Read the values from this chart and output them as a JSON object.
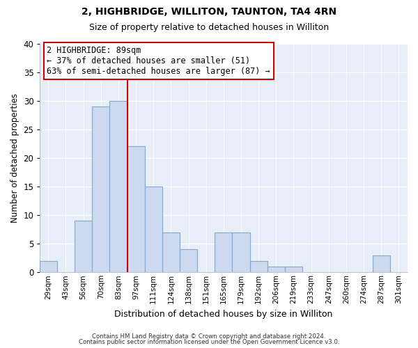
{
  "title": "2, HIGHBRIDGE, WILLITON, TAUNTON, TA4 4RN",
  "subtitle": "Size of property relative to detached houses in Williton",
  "xlabel": "Distribution of detached houses by size in Williton",
  "ylabel": "Number of detached properties",
  "bin_labels": [
    "29sqm",
    "43sqm",
    "56sqm",
    "70sqm",
    "83sqm",
    "97sqm",
    "111sqm",
    "124sqm",
    "138sqm",
    "151sqm",
    "165sqm",
    "179sqm",
    "192sqm",
    "206sqm",
    "219sqm",
    "233sqm",
    "247sqm",
    "260sqm",
    "274sqm",
    "287sqm",
    "301sqm"
  ],
  "bar_heights": [
    2,
    0,
    9,
    29,
    30,
    22,
    15,
    7,
    4,
    0,
    7,
    7,
    2,
    1,
    1,
    0,
    0,
    0,
    0,
    3,
    0
  ],
  "bar_color": "#ccd9ee",
  "bar_edge_color": "#7aaad0",
  "highlight_bar_index": 5,
  "highlight_line_color": "#cc0000",
  "ylim": [
    0,
    40
  ],
  "yticks": [
    0,
    5,
    10,
    15,
    20,
    25,
    30,
    35,
    40
  ],
  "annotation_title": "2 HIGHBRIDGE: 89sqm",
  "annotation_line1": "← 37% of detached houses are smaller (51)",
  "annotation_line2": "63% of semi-detached houses are larger (87) →",
  "annotation_box_color": "#ffffff",
  "annotation_box_edge_color": "#cc0000",
  "footer_line1": "Contains HM Land Registry data © Crown copyright and database right 2024.",
  "footer_line2": "Contains public sector information licensed under the Open Government Licence v3.0.",
  "background_color": "#ffffff",
  "plot_bg_color": "#e8eef8"
}
